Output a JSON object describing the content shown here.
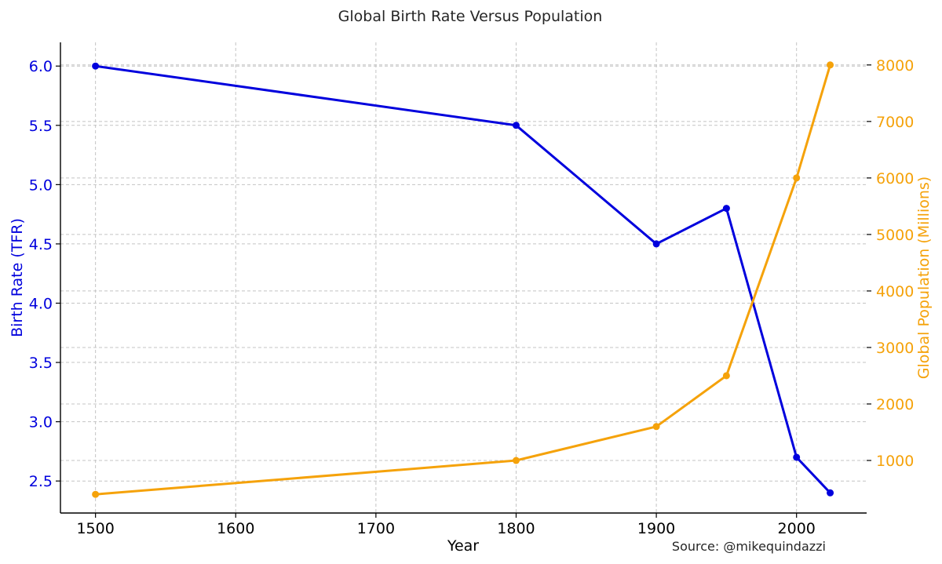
{
  "chart_data": {
    "type": "line",
    "title": "Global Birth Rate Versus Population",
    "xlabel": "Year",
    "ylabel": "Birth Rate (TFR)",
    "y2label": "Global Population (Millions)",
    "source": "Source: @mikequindazzi",
    "x": [
      1500,
      1800,
      1900,
      1950,
      2000,
      2024
    ],
    "xlim": [
      1475,
      2050
    ],
    "ylim": [
      2.23,
      6.2
    ],
    "y2lim": [
      70,
      8400
    ],
    "x_ticks": [
      "1500",
      "1600",
      "1700",
      "1800",
      "1900",
      "2000"
    ],
    "y_ticks": [
      "2.5",
      "3.0",
      "3.5",
      "4.0",
      "4.5",
      "5.0",
      "5.5",
      "6.0"
    ],
    "y2_ticks": [
      "1000",
      "2000",
      "3000",
      "4000",
      "5000",
      "6000",
      "7000",
      "8000"
    ],
    "grid": true,
    "series": [
      {
        "name": "Birth Rate (TFR)",
        "axis": "left",
        "color": "#0000dd",
        "values": [
          6.0,
          5.5,
          4.5,
          4.8,
          2.7,
          2.4
        ]
      },
      {
        "name": "Global Population (Millions)",
        "axis": "right",
        "color": "#f5a20a",
        "values": [
          400,
          1000,
          1600,
          2500,
          6000,
          8000
        ]
      }
    ]
  }
}
